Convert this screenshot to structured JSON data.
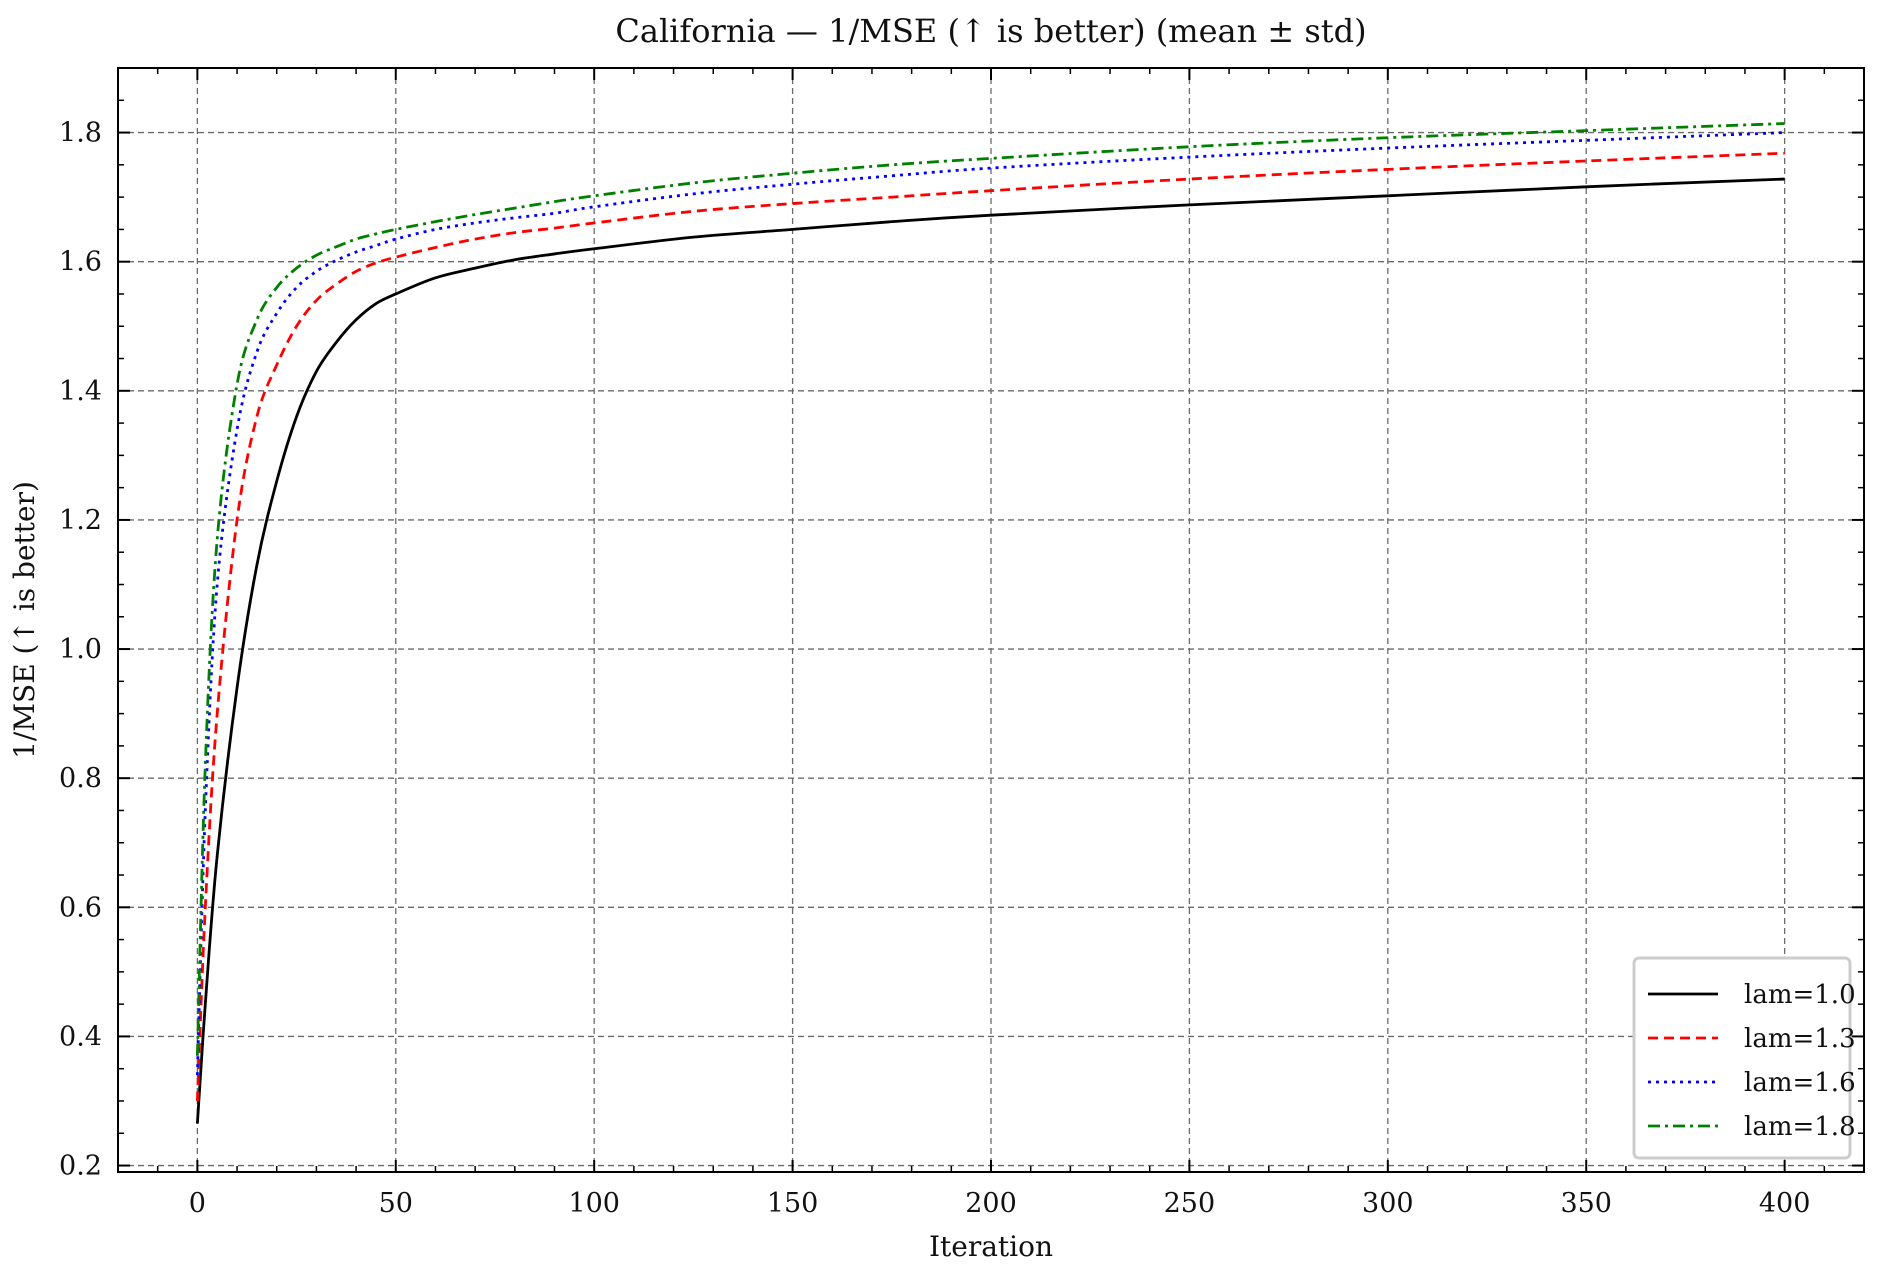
{
  "chart_data": {
    "type": "line",
    "title": "California — 1/MSE (↑ is better) (mean ± std)",
    "xlabel": "Iteration",
    "ylabel": "1/MSE (↑ is better)",
    "xlim": [
      -20,
      420
    ],
    "ylim": [
      0.19,
      1.9
    ],
    "xticks": [
      0,
      50,
      100,
      150,
      200,
      250,
      300,
      350,
      400
    ],
    "xtick_labels": [
      "0",
      "50",
      "100",
      "150",
      "200",
      "250",
      "300",
      "350",
      "400"
    ],
    "yticks": [
      0.2,
      0.4,
      0.6,
      0.8,
      1.0,
      1.2,
      1.4,
      1.6,
      1.8
    ],
    "ytick_labels": [
      "0.2",
      "0.4",
      "0.6",
      "0.8",
      "1.0",
      "1.2",
      "1.4",
      "1.6",
      "1.8"
    ],
    "grid": true,
    "legend_position": "bottom-right",
    "x": [
      0,
      2,
      5,
      10,
      15,
      20,
      25,
      30,
      35,
      40,
      45,
      50,
      60,
      70,
      80,
      90,
      100,
      125,
      150,
      175,
      200,
      250,
      300,
      350,
      400
    ],
    "series": [
      {
        "name": "lam=1.0",
        "color": "#000000",
        "dash": "solid",
        "values": [
          0.265,
          0.45,
          0.68,
          0.94,
          1.13,
          1.26,
          1.36,
          1.43,
          1.475,
          1.51,
          1.535,
          1.55,
          1.575,
          1.59,
          1.603,
          1.612,
          1.62,
          1.638,
          1.65,
          1.662,
          1.672,
          1.688,
          1.702,
          1.716,
          1.728
        ]
      },
      {
        "name": "lam=1.3",
        "color": "#ff0000",
        "dash": "dashed",
        "values": [
          0.3,
          0.6,
          0.9,
          1.2,
          1.36,
          1.44,
          1.5,
          1.54,
          1.565,
          1.585,
          1.598,
          1.607,
          1.622,
          1.635,
          1.645,
          1.652,
          1.66,
          1.678,
          1.69,
          1.7,
          1.71,
          1.728,
          1.743,
          1.756,
          1.768
        ]
      },
      {
        "name": "lam=1.6",
        "color": "#0000ff",
        "dash": "dotted",
        "values": [
          0.34,
          0.75,
          1.1,
          1.34,
          1.46,
          1.52,
          1.56,
          1.585,
          1.602,
          1.615,
          1.625,
          1.635,
          1.65,
          1.66,
          1.668,
          1.675,
          1.685,
          1.705,
          1.72,
          1.733,
          1.745,
          1.762,
          1.776,
          1.788,
          1.8
        ]
      },
      {
        "name": "lam=1.8",
        "color": "#008000",
        "dash": "dashdot",
        "values": [
          0.37,
          0.82,
          1.17,
          1.41,
          1.51,
          1.56,
          1.59,
          1.61,
          1.623,
          1.635,
          1.643,
          1.65,
          1.662,
          1.673,
          1.683,
          1.693,
          1.702,
          1.722,
          1.737,
          1.75,
          1.76,
          1.778,
          1.792,
          1.803,
          1.814
        ]
      }
    ]
  }
}
